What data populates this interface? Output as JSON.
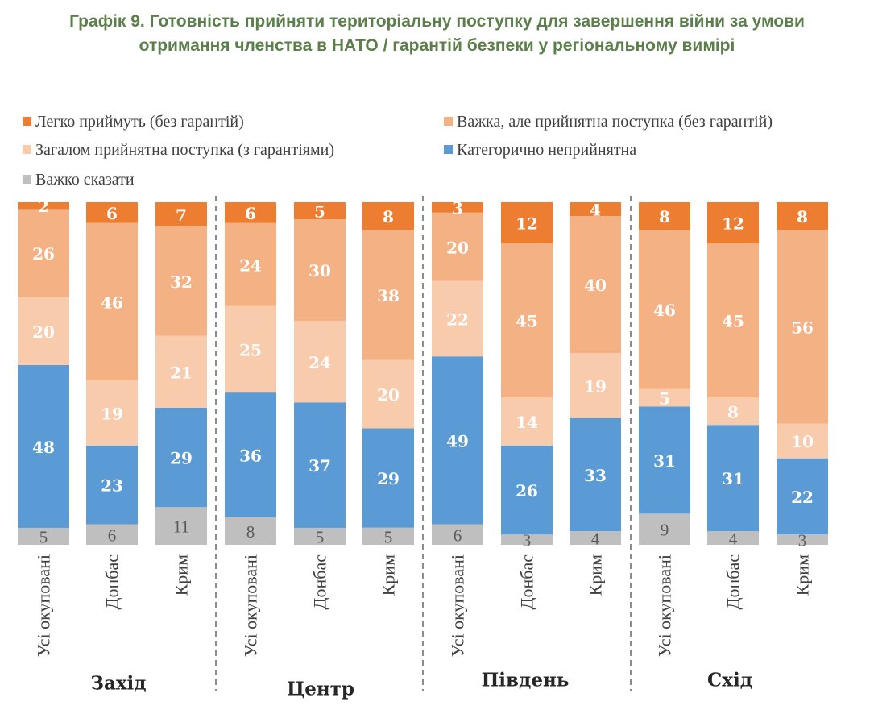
{
  "title_lines": [
    "Графік 9. Готовність прийняти територіальну поступку для завершення війни за умови",
    "отримання членства в НАТО / гарантій безпеки у регіональному вимірі"
  ],
  "colors": {
    "easy": "#ed7d31",
    "hard": "#f4b183",
    "general": "#f8cbad",
    "reject": "#5b9bd5",
    "unsure": "#bfbfbf"
  },
  "chart_data": {
    "type": "bar",
    "stacked": true,
    "normalized": true,
    "ylim": [
      0,
      100
    ],
    "categories": [
      "Усі окуповані",
      "Донбас",
      "Крим",
      "Усі окуповані",
      "Донбас",
      "Крим",
      "Усі окуповані",
      "Донбас",
      "Крим",
      "Усі окуповані",
      "Донбас",
      "Крим"
    ],
    "groups": [
      {
        "name": "Захід",
        "categories": [
          "Усі окуповані",
          "Донбас",
          "Крим"
        ]
      },
      {
        "name": "Центр",
        "categories": [
          "Усі окуповані",
          "Донбас",
          "Крим"
        ]
      },
      {
        "name": "Південь",
        "categories": [
          "Усі окуповані",
          "Донбас",
          "Крим"
        ]
      },
      {
        "name": "Схід",
        "categories": [
          "Усі окуповані",
          "Донбас",
          "Крим"
        ]
      }
    ],
    "series": [
      {
        "name": "Важко сказати",
        "key": "unsure",
        "values": [
          5,
          6,
          11,
          8,
          5,
          5,
          6,
          3,
          4,
          9,
          4,
          3
        ]
      },
      {
        "name": "Категорично неприйнятна",
        "key": "reject",
        "values": [
          48,
          23,
          29,
          36,
          37,
          29,
          49,
          26,
          33,
          31,
          31,
          22
        ]
      },
      {
        "name": "Загалом прийнятна поступка (з гарантіями)",
        "key": "general",
        "values": [
          20,
          19,
          21,
          25,
          24,
          20,
          22,
          14,
          19,
          5,
          8,
          10
        ]
      },
      {
        "name": "Важка, але прийнятна поступка (без гарантій)",
        "key": "hard",
        "values": [
          26,
          46,
          32,
          24,
          30,
          38,
          20,
          45,
          40,
          46,
          45,
          56
        ]
      },
      {
        "name": "Легко приймуть (без гарантій)",
        "key": "easy",
        "values": [
          2,
          6,
          7,
          6,
          5,
          8,
          3,
          12,
          4,
          8,
          12,
          8
        ]
      }
    ],
    "legend": [
      {
        "name": "Легко приймуть (без гарантій)",
        "key": "easy"
      },
      {
        "name": "Важка, але прийнятна поступка (без гарантій)",
        "key": "hard"
      },
      {
        "name": "Загалом прийнятна поступка (з гарантіями)",
        "key": "general"
      },
      {
        "name": "Категорично неприйнятна",
        "key": "reject"
      },
      {
        "name": "Важко сказати",
        "key": "unsure"
      }
    ],
    "legend_position": "top",
    "grid": false
  }
}
